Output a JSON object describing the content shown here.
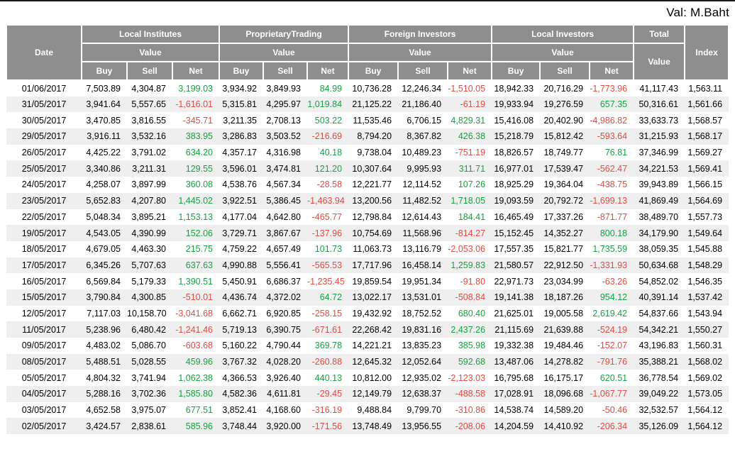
{
  "page": {
    "val_label": "Val: M.Baht"
  },
  "table": {
    "header": {
      "date": "Date",
      "groups": [
        {
          "label": "Local Institutes",
          "sub": "Value",
          "cols": [
            "Buy",
            "Sell",
            "Net"
          ]
        },
        {
          "label": "ProprietaryTrading",
          "sub": "Value",
          "cols": [
            "Buy",
            "Sell",
            "Net"
          ]
        },
        {
          "label": "Foreign Investors",
          "sub": "Value",
          "cols": [
            "Buy",
            "Sell",
            "Net"
          ]
        },
        {
          "label": "Local Investors",
          "sub": "Value",
          "cols": [
            "Buy",
            "Sell",
            "Net"
          ]
        }
      ],
      "total": {
        "label": "Total",
        "sub": "Value"
      },
      "index_label": "Index"
    },
    "colors": {
      "header_bg": "#8e8e8e",
      "positive": "#18a142",
      "negative": "#e04b44",
      "row_alt": "#efefef"
    },
    "rows": [
      {
        "date": "01/06/2017",
        "values": [
          "7,503.89",
          "4,304.87",
          "3,199.03",
          "3,934.92",
          "3,849.93",
          "84.99",
          "10,736.28",
          "12,246.34",
          "-1,510.05",
          "18,942.33",
          "20,716.29",
          "-1,773.96"
        ],
        "total": "41,117.43",
        "index": "1,563.11"
      },
      {
        "date": "31/05/2017",
        "values": [
          "3,941.64",
          "5,557.65",
          "-1,616.01",
          "5,315.81",
          "4,295.97",
          "1,019.84",
          "21,125.22",
          "21,186.40",
          "-61.19",
          "19,933.94",
          "19,276.59",
          "657.35"
        ],
        "total": "50,316.61",
        "index": "1,561.66"
      },
      {
        "date": "30/05/2017",
        "values": [
          "3,470.85",
          "3,816.55",
          "-345.71",
          "3,211.35",
          "2,708.13",
          "503.22",
          "11,535.46",
          "6,706.15",
          "4,829.31",
          "15,416.08",
          "20,402.90",
          "-4,986.82"
        ],
        "total": "33,633.73",
        "index": "1,568.57"
      },
      {
        "date": "29/05/2017",
        "values": [
          "3,916.11",
          "3,532.16",
          "383.95",
          "3,286.83",
          "3,503.52",
          "-216.69",
          "8,794.20",
          "8,367.82",
          "426.38",
          "15,218.79",
          "15,812.42",
          "-593.64"
        ],
        "total": "31,215.93",
        "index": "1,568.17"
      },
      {
        "date": "26/05/2017",
        "values": [
          "4,425.22",
          "3,791.02",
          "634.20",
          "4,357.17",
          "4,316.98",
          "40.18",
          "9,738.04",
          "10,489.23",
          "-751.19",
          "18,826.57",
          "18,749.77",
          "76.81"
        ],
        "total": "37,346.99",
        "index": "1,569.27"
      },
      {
        "date": "25/05/2017",
        "values": [
          "3,340.86",
          "3,211.31",
          "129.55",
          "3,596.01",
          "3,474.81",
          "121.20",
          "10,307.64",
          "9,995.93",
          "311.71",
          "16,977.01",
          "17,539.47",
          "-562.47"
        ],
        "total": "34,221.53",
        "index": "1,569.41"
      },
      {
        "date": "24/05/2017",
        "values": [
          "4,258.07",
          "3,897.99",
          "360.08",
          "4,538.76",
          "4,567.34",
          "-28.58",
          "12,221.77",
          "12,114.52",
          "107.26",
          "18,925.29",
          "19,364.04",
          "-438.75"
        ],
        "total": "39,943.89",
        "index": "1,566.15"
      },
      {
        "date": "23/05/2017",
        "values": [
          "5,652.83",
          "4,207.80",
          "1,445.02",
          "3,922.51",
          "5,386.45",
          "-1,463.94",
          "13,200.56",
          "11,482.52",
          "1,718.05",
          "19,093.59",
          "20,792.72",
          "-1,699.13"
        ],
        "total": "41,869.49",
        "index": "1,564.69"
      },
      {
        "date": "22/05/2017",
        "values": [
          "5,048.34",
          "3,895.21",
          "1,153.13",
          "4,177.04",
          "4,642.80",
          "-465.77",
          "12,798.84",
          "12,614.43",
          "184.41",
          "16,465.49",
          "17,337.26",
          "-871.77"
        ],
        "total": "38,489.70",
        "index": "1,557.73"
      },
      {
        "date": "19/05/2017",
        "values": [
          "4,543.05",
          "4,390.99",
          "152.06",
          "3,729.71",
          "3,867.67",
          "-137.96",
          "10,754.69",
          "11,568.96",
          "-814.27",
          "15,152.45",
          "14,352.27",
          "800.18"
        ],
        "total": "34,179.90",
        "index": "1,549.64"
      },
      {
        "date": "18/05/2017",
        "values": [
          "4,679.05",
          "4,463.30",
          "215.75",
          "4,759.22",
          "4,657.49",
          "101.73",
          "11,063.73",
          "13,116.79",
          "-2,053.06",
          "17,557.35",
          "15,821.77",
          "1,735.59"
        ],
        "total": "38,059.35",
        "index": "1,545.88"
      },
      {
        "date": "17/05/2017",
        "values": [
          "6,345.26",
          "5,707.63",
          "637.63",
          "4,990.88",
          "5,556.41",
          "-565.53",
          "17,717.96",
          "16,458.14",
          "1,259.83",
          "21,580.57",
          "22,912.50",
          "-1,331.93"
        ],
        "total": "50,634.68",
        "index": "1,548.29"
      },
      {
        "date": "16/05/2017",
        "values": [
          "6,569.84",
          "5,179.33",
          "1,390.51",
          "5,450.91",
          "6,686.37",
          "-1,235.45",
          "19,859.54",
          "19,951.34",
          "-91.80",
          "22,971.73",
          "23,034.99",
          "-63.26"
        ],
        "total": "54,852.02",
        "index": "1,546.35"
      },
      {
        "date": "15/05/2017",
        "values": [
          "3,790.84",
          "4,300.85",
          "-510.01",
          "4,436.74",
          "4,372.02",
          "64.72",
          "13,022.17",
          "13,531.01",
          "-508.84",
          "19,141.38",
          "18,187.26",
          "954.12"
        ],
        "total": "40,391.14",
        "index": "1,537.42"
      },
      {
        "date": "12/05/2017",
        "values": [
          "7,117.03",
          "10,158.70",
          "-3,041.68",
          "6,662.71",
          "6,920.85",
          "-258.15",
          "19,432.92",
          "18,752.52",
          "680.40",
          "21,625.01",
          "19,005.58",
          "2,619.42"
        ],
        "total": "54,837.66",
        "index": "1,543.94"
      },
      {
        "date": "11/05/2017",
        "values": [
          "5,238.96",
          "6,480.42",
          "-1,241.46",
          "5,719.13",
          "6,390.75",
          "-671.61",
          "22,268.42",
          "19,831.16",
          "2,437.26",
          "21,115.69",
          "21,639.88",
          "-524.19"
        ],
        "total": "54,342.21",
        "index": "1,550.27"
      },
      {
        "date": "09/05/2017",
        "values": [
          "4,483.02",
          "5,086.70",
          "-603.68",
          "5,160.22",
          "4,790.44",
          "369.78",
          "14,221.21",
          "13,835.23",
          "385.98",
          "19,332.38",
          "19,484.46",
          "-152.07"
        ],
        "total": "43,196.83",
        "index": "1,560.31"
      },
      {
        "date": "08/05/2017",
        "values": [
          "5,488.51",
          "5,028.55",
          "459.96",
          "3,767.32",
          "4,028.20",
          "-260.88",
          "12,645.32",
          "12,052.64",
          "592.68",
          "13,487.06",
          "14,278.82",
          "-791.76"
        ],
        "total": "35,388.21",
        "index": "1,568.02"
      },
      {
        "date": "05/05/2017",
        "values": [
          "4,804.32",
          "3,741.94",
          "1,062.38",
          "4,366.53",
          "3,926.40",
          "440.13",
          "10,812.00",
          "12,935.02",
          "-2,123.03",
          "16,795.68",
          "16,175.17",
          "620.51"
        ],
        "total": "36,778.54",
        "index": "1,569.02"
      },
      {
        "date": "04/05/2017",
        "values": [
          "5,288.16",
          "3,702.36",
          "1,585.80",
          "4,582.36",
          "4,611.81",
          "-29.45",
          "12,149.79",
          "12,638.37",
          "-488.58",
          "17,028.91",
          "18,096.68",
          "-1,067.77"
        ],
        "total": "39,049.22",
        "index": "1,573.05"
      },
      {
        "date": "03/05/2017",
        "values": [
          "4,652.58",
          "3,975.07",
          "677.51",
          "3,852.41",
          "4,168.60",
          "-316.19",
          "9,488.84",
          "9,799.70",
          "-310.86",
          "14,538.74",
          "14,589.20",
          "-50.46"
        ],
        "total": "32,532.57",
        "index": "1,564.12"
      },
      {
        "date": "02/05/2017",
        "values": [
          "3,424.57",
          "2,838.61",
          "585.96",
          "3,748.44",
          "3,920.00",
          "-171.56",
          "13,748.49",
          "13,956.55",
          "-208.06",
          "14,204.59",
          "14,410.92",
          "-206.34"
        ],
        "total": "35,126.09",
        "index": "1,564.12"
      }
    ]
  }
}
